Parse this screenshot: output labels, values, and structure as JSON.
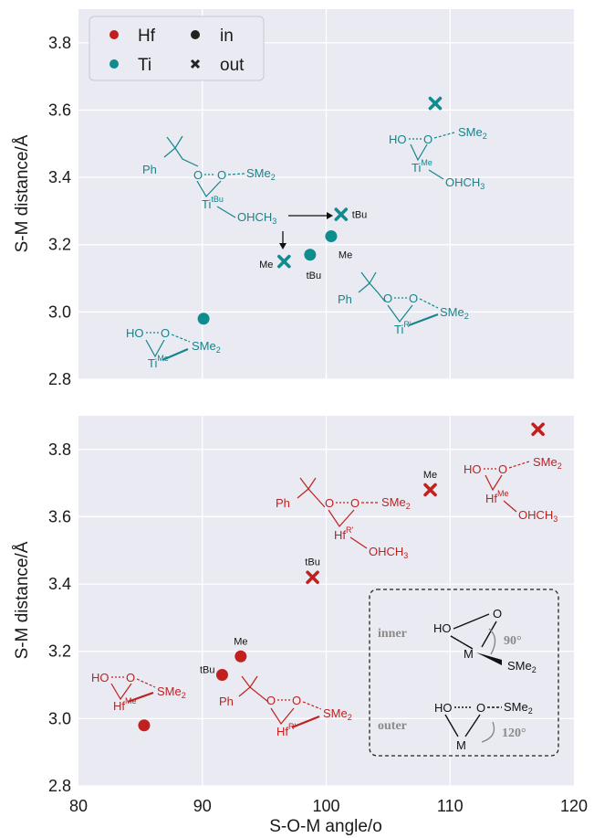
{
  "chart_data": [
    {
      "panel": "top",
      "type": "scatter",
      "ylabel": "S-M distance/Å",
      "ylim": [
        2.8,
        3.9
      ],
      "xlim": [
        80,
        120
      ],
      "yticks": [
        "2.8",
        "3.0",
        "3.2",
        "3.4",
        "3.6",
        "3.8"
      ],
      "grid": true,
      "legend": {
        "placement": "top-left",
        "entries": [
          {
            "label": "Hf",
            "marker": "dot",
            "color": "#c0211f"
          },
          {
            "label": "in",
            "marker": "dot",
            "color": "#222222"
          },
          {
            "label": "Ti",
            "marker": "dot",
            "color": "#0f8c8e"
          },
          {
            "label": "out",
            "marker": "cross",
            "color": "#222222"
          }
        ]
      },
      "points": [
        {
          "x": 90.1,
          "y": 2.98,
          "metal": "Ti",
          "marker": "in",
          "label": ""
        },
        {
          "x": 96.6,
          "y": 3.15,
          "metal": "Ti",
          "marker": "out",
          "label": "Me"
        },
        {
          "x": 98.7,
          "y": 3.17,
          "metal": "Ti",
          "marker": "in",
          "label": "tBu"
        },
        {
          "x": 100.4,
          "y": 3.225,
          "metal": "Ti",
          "marker": "in",
          "label": "Me"
        },
        {
          "x": 101.2,
          "y": 3.29,
          "metal": "Ti",
          "marker": "out",
          "label": "tBu"
        },
        {
          "x": 108.8,
          "y": 3.62,
          "metal": "Ti",
          "marker": "out",
          "label": ""
        }
      ],
      "structures": [
        {
          "kind": "cumyl",
          "M": "Ti",
          "Msup": "tBu",
          "ligand": "OHCH3"
        },
        {
          "kind": "hydroxy",
          "M": "Ti",
          "Msup": "Me",
          "ligand": "OHCH3"
        },
        {
          "kind": "cumyl",
          "M": "Ti",
          "Msup": "R'",
          "ligand": ""
        },
        {
          "kind": "hydroxy",
          "M": "Ti",
          "Msup": "Me",
          "ligand": ""
        }
      ]
    },
    {
      "panel": "bottom",
      "type": "scatter",
      "xlabel": "S-O-M angle/o",
      "ylabel": "S-M distance/Å",
      "ylim": [
        2.8,
        3.9
      ],
      "xlim": [
        80,
        120
      ],
      "xticks": [
        "80",
        "90",
        "100",
        "110",
        "120"
      ],
      "yticks": [
        "2.8",
        "3.0",
        "3.2",
        "3.4",
        "3.6",
        "3.8"
      ],
      "grid": true,
      "points": [
        {
          "x": 85.3,
          "y": 2.98,
          "metal": "Hf",
          "marker": "in",
          "label": ""
        },
        {
          "x": 91.6,
          "y": 3.13,
          "metal": "Hf",
          "marker": "in",
          "label": "tBu"
        },
        {
          "x": 93.1,
          "y": 3.185,
          "metal": "Hf",
          "marker": "in",
          "label": "Me"
        },
        {
          "x": 98.9,
          "y": 3.42,
          "metal": "Hf",
          "marker": "out",
          "label": "tBu"
        },
        {
          "x": 108.4,
          "y": 3.68,
          "metal": "Hf",
          "marker": "out",
          "label": "Me"
        },
        {
          "x": 117.1,
          "y": 3.86,
          "metal": "Hf",
          "marker": "out",
          "label": ""
        }
      ],
      "structures": [
        {
          "kind": "cumyl",
          "M": "Hf",
          "Msup": "R'",
          "ligand": "OHCH3"
        },
        {
          "kind": "hydroxy",
          "M": "Hf",
          "Msup": "Me",
          "ligand": "OHCH3"
        },
        {
          "kind": "hydroxy",
          "M": "Hf",
          "Msup": "Me",
          "ligand": ""
        },
        {
          "kind": "cumyl",
          "M": "Hf",
          "Msup": "R'",
          "ligand": ""
        }
      ],
      "inset": {
        "inner_label": "inner",
        "outer_label": "outer",
        "inner_angle": "90°",
        "outer_angle": "120°",
        "ho": "HO",
        "o": "O",
        "m": "M",
        "s": "SMe",
        "s_sub": "2"
      }
    }
  ],
  "chem": {
    "ph": "Ph",
    "o": "O",
    "ho": "HO",
    "s": "SMe",
    "s_sub": "2",
    "ohch": "OHCH",
    "ohch_sub": "3"
  }
}
